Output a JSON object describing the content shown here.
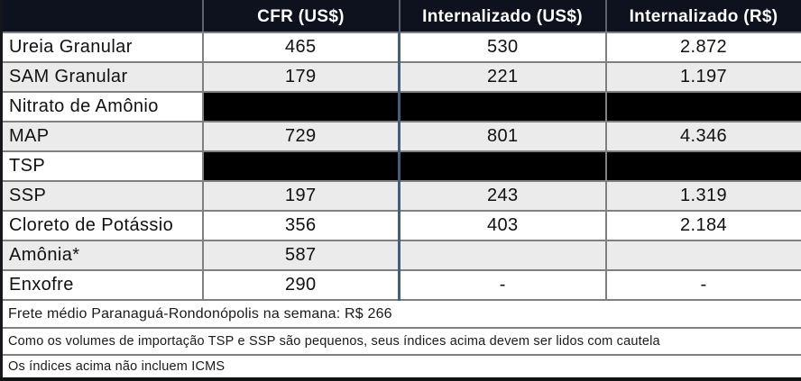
{
  "table": {
    "columns": {
      "product": "",
      "cfr": "CFR (US$)",
      "internalizado_usd": "Internalizado (US$)",
      "internalizado_brl": "Internalizado (R$)"
    },
    "rows": [
      {
        "label": "Ureia Granular",
        "cfr": "465",
        "internalizado_usd": "530",
        "internalizado_brl": "2.872",
        "redacted": false
      },
      {
        "label": "SAM Granular",
        "cfr": "179",
        "internalizado_usd": "221",
        "internalizado_brl": "1.197",
        "redacted": false
      },
      {
        "label": "Nitrato de Amônio",
        "cfr": "",
        "internalizado_usd": "",
        "internalizado_brl": "",
        "redacted": true
      },
      {
        "label": "MAP",
        "cfr": "729",
        "internalizado_usd": "801",
        "internalizado_brl": "4.346",
        "redacted": false
      },
      {
        "label": "TSP",
        "cfr": "",
        "internalizado_usd": "",
        "internalizado_brl": "",
        "redacted": true
      },
      {
        "label": "SSP",
        "cfr": "197",
        "internalizado_usd": "243",
        "internalizado_brl": "1.319",
        "redacted": false
      },
      {
        "label": "Cloreto de Potássio",
        "cfr": "356",
        "internalizado_usd": "403",
        "internalizado_brl": "2.184",
        "redacted": false
      },
      {
        "label": "Amônia*",
        "cfr": "587",
        "internalizado_usd": "",
        "internalizado_brl": "",
        "redacted": false
      },
      {
        "label": "Enxofre",
        "cfr": "290",
        "internalizado_usd": "-",
        "internalizado_brl": "-",
        "redacted": false
      }
    ],
    "footnotes": [
      "Frete médio Paranaguá-Rondonópolis na semana: R$ 266",
      "Como os volumes de importação TSP e SSP são pequenos, seus índices acima devem ser lidos com cautela",
      "Os índices acima não incluem ICMS"
    ]
  },
  "colors": {
    "header_bg": "#0d121e",
    "header_text": "#ffffff",
    "row_bg": "#ffffff",
    "stripe_bg": "#ebebeb",
    "cell_border": "#808080",
    "cfr_divider_blue": "#41607c",
    "redacted_cell": "#000000",
    "outer_border_dark": "#101216"
  }
}
